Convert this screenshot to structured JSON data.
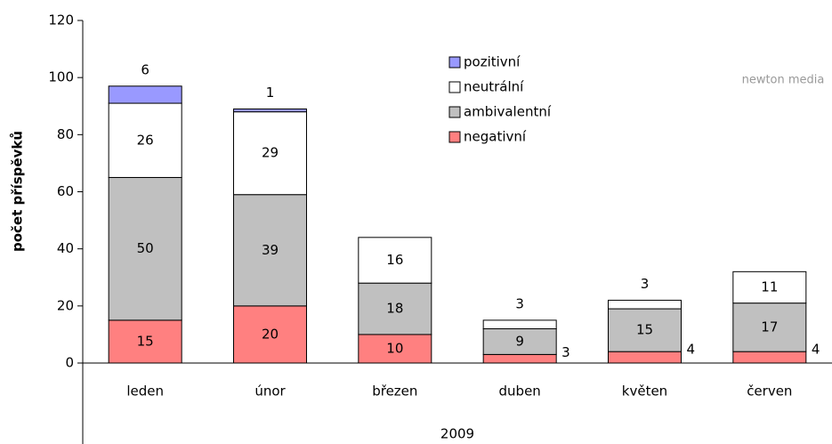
{
  "chart_data": {
    "type": "stacked_bar",
    "y_label": "počet příspěvků",
    "x_label": "2009",
    "watermark": "newton media",
    "categories": [
      "leden",
      "únor",
      "březen",
      "duben",
      "květen",
      "červen"
    ],
    "series": [
      {
        "name": "negativní",
        "color": "#ff8080",
        "values": [
          15,
          20,
          10,
          3,
          4,
          4
        ]
      },
      {
        "name": "ambivalentní",
        "color": "#c0c0c0",
        "values": [
          50,
          39,
          18,
          9,
          15,
          17
        ]
      },
      {
        "name": "neutrální",
        "color": "#ffffff",
        "values": [
          26,
          29,
          16,
          3,
          3,
          11
        ]
      },
      {
        "name": "pozitivní",
        "color": "#9999ff",
        "values": [
          6,
          1,
          null,
          null,
          null,
          null
        ]
      }
    ],
    "ylim": [
      0,
      120
    ],
    "yticks": [
      0,
      20,
      40,
      60,
      80,
      100,
      120
    ]
  }
}
